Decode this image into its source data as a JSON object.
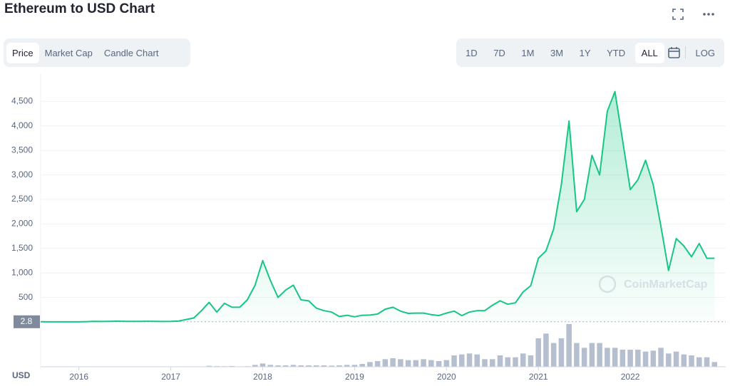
{
  "ui": {
    "title": "Ethereum to USD Chart",
    "tabs": [
      "Price",
      "Market Cap",
      "Candle Chart"
    ],
    "ranges": [
      "1D",
      "7D",
      "1M",
      "3M",
      "1Y",
      "YTD",
      "ALL"
    ],
    "log": "LOG"
  },
  "chart_data": {
    "type": "line",
    "watermark": "CoinMarketCap",
    "currency_label": "USD",
    "x": [
      "2015-08",
      "2015-09",
      "2015-10",
      "2015-11",
      "2015-12",
      "2016-01",
      "2016-02",
      "2016-03",
      "2016-04",
      "2016-05",
      "2016-06",
      "2016-07",
      "2016-08",
      "2016-09",
      "2016-10",
      "2016-11",
      "2016-12",
      "2017-01",
      "2017-02",
      "2017-03",
      "2017-04",
      "2017-05",
      "2017-06",
      "2017-07",
      "2017-08",
      "2017-09",
      "2017-10",
      "2017-11",
      "2017-12",
      "2018-01",
      "2018-02",
      "2018-03",
      "2018-04",
      "2018-05",
      "2018-06",
      "2018-07",
      "2018-08",
      "2018-09",
      "2018-10",
      "2018-11",
      "2018-12",
      "2019-01",
      "2019-02",
      "2019-03",
      "2019-04",
      "2019-05",
      "2019-06",
      "2019-07",
      "2019-08",
      "2019-09",
      "2019-10",
      "2019-11",
      "2019-12",
      "2020-01",
      "2020-02",
      "2020-03",
      "2020-04",
      "2020-05",
      "2020-06",
      "2020-07",
      "2020-08",
      "2020-09",
      "2020-10",
      "2020-11",
      "2020-12",
      "2021-01",
      "2021-02",
      "2021-03",
      "2021-04",
      "2021-05",
      "2021-06",
      "2021-07",
      "2021-08",
      "2021-09",
      "2021-10",
      "2021-11",
      "2021-12",
      "2022-01",
      "2022-02",
      "2022-03",
      "2022-04",
      "2022-05",
      "2022-06",
      "2022-07",
      "2022-08",
      "2022-09",
      "2022-10",
      "2022-11",
      "2022-12"
    ],
    "series": [
      {
        "color": "#16c784",
        "values": [
          2.8,
          1,
          1,
          1,
          1,
          1,
          6,
          11,
          9,
          12,
          14,
          12,
          11,
          12,
          13,
          11,
          8,
          10,
          16,
          50,
          80,
          230,
          400,
          200,
          380,
          300,
          300,
          450,
          750,
          1250,
          850,
          500,
          650,
          750,
          450,
          430,
          280,
          230,
          200,
          110,
          135,
          105,
          135,
          140,
          160,
          260,
          300,
          220,
          175,
          180,
          180,
          150,
          130,
          180,
          220,
          130,
          200,
          230,
          230,
          340,
          430,
          360,
          390,
          610,
          740,
          1300,
          1450,
          1900,
          2800,
          4100,
          2250,
          2500,
          3400,
          3000,
          4300,
          4700,
          3700,
          2700,
          2900,
          3300,
          2800,
          1950,
          1050,
          1700,
          1550,
          1330,
          1600,
          1300,
          1300
        ]
      }
    ],
    "volume": {
      "color": "#b6bfd0",
      "values": [
        0.001,
        0.001,
        0.001,
        0.001,
        0.001,
        0.005,
        0.01,
        0.02,
        0.02,
        0.02,
        0.05,
        0.03,
        0.02,
        0.01,
        0.01,
        0.01,
        0.01,
        0.02,
        0.02,
        0.1,
        0.1,
        0.4,
        1,
        0.7,
        0.6,
        0.8,
        0.4,
        0.6,
        2,
        3.5,
        2,
        1.5,
        1.5,
        2,
        1.5,
        1.5,
        1.5,
        1.5,
        1.2,
        1.5,
        2,
        2,
        3,
        5,
        6,
        8,
        9,
        8,
        7,
        7,
        8,
        7,
        6,
        7,
        12,
        13,
        14,
        13,
        8,
        8,
        12,
        10,
        10,
        14,
        12,
        30,
        35,
        25,
        30,
        45,
        25,
        20,
        25,
        25,
        20,
        20,
        18,
        18,
        18,
        16,
        17,
        20,
        14,
        16,
        13,
        12,
        10,
        10,
        5
      ]
    },
    "reference_line": 2.8,
    "xlim": [
      "2015-08",
      "2023-01"
    ],
    "xticks": [
      "2016",
      "2017",
      "2018",
      "2019",
      "2020",
      "2021",
      "2022"
    ],
    "ylim": [
      0,
      5000
    ],
    "yticks": [
      500,
      {
        "value": 1000,
        "label": "1,000"
      },
      {
        "value": 1500,
        "label": "1,500"
      },
      {
        "value": 2000,
        "label": "2,000"
      },
      {
        "value": 2500,
        "label": "2,500"
      },
      {
        "value": 3000,
        "label": "3,000"
      },
      {
        "value": 3500,
        "label": "3,500"
      },
      {
        "value": 4000,
        "label": "4,000"
      },
      {
        "value": 4500,
        "label": "4,500"
      }
    ],
    "grid": true
  }
}
